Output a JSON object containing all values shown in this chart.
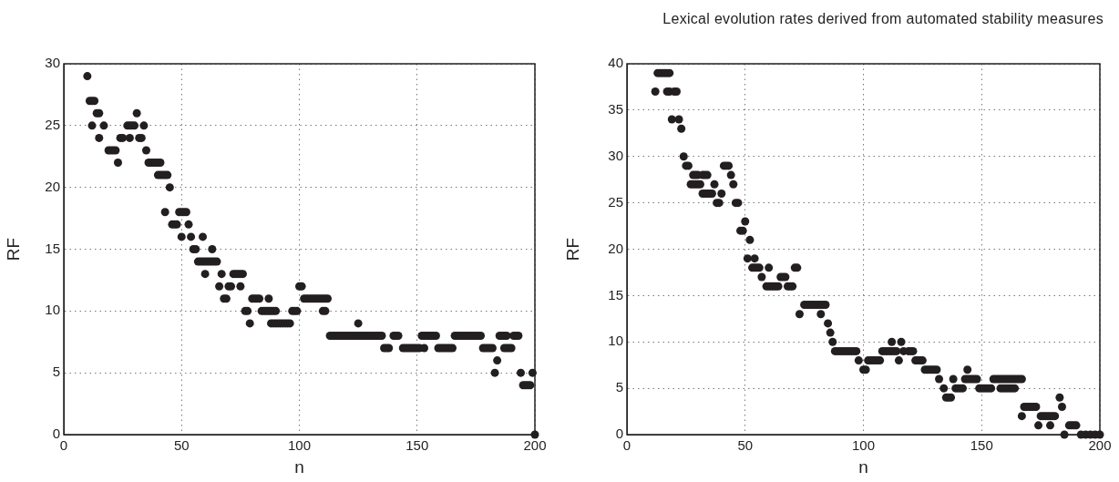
{
  "chart_data": [
    {
      "type": "scatter",
      "xlabel": "n",
      "ylabel": "RF",
      "xlim": [
        0,
        200
      ],
      "ylim": [
        0,
        30
      ],
      "xticks": [
        0,
        50,
        100,
        150,
        200
      ],
      "yticks": [
        0,
        5,
        10,
        15,
        20,
        25,
        30
      ],
      "grid": true,
      "marker": "circle",
      "series": [
        {
          "color": "#231f20",
          "x": [
            10,
            11,
            12,
            13,
            14,
            15,
            12,
            17,
            27,
            28,
            29,
            30,
            34,
            15,
            24,
            25,
            28,
            32,
            33,
            31,
            19,
            20,
            21,
            22,
            35,
            23,
            36,
            37,
            38,
            39,
            40,
            41,
            40,
            41,
            42,
            43,
            44,
            45,
            43,
            49,
            50,
            51,
            52,
            46,
            47,
            48,
            53,
            50,
            54,
            59,
            55,
            56,
            63,
            57,
            58,
            59,
            60,
            61,
            62,
            63,
            64,
            65,
            60,
            67,
            72,
            73,
            74,
            75,
            76,
            66,
            70,
            71,
            75,
            100,
            101,
            68,
            69,
            80,
            81,
            82,
            83,
            87,
            102,
            103,
            104,
            105,
            106,
            107,
            108,
            109,
            110,
            111,
            112,
            77,
            78,
            84,
            85,
            86,
            87,
            88,
            89,
            90,
            97,
            98,
            99,
            110,
            111,
            79,
            88,
            89,
            90,
            91,
            92,
            93,
            94,
            95,
            96,
            125,
            113,
            114,
            115,
            116,
            117,
            118,
            119,
            120,
            121,
            122,
            123,
            124,
            125,
            126,
            127,
            128,
            129,
            130,
            131,
            132,
            133,
            134,
            135,
            140,
            141,
            142,
            152,
            153,
            154,
            155,
            156,
            157,
            158,
            166,
            167,
            168,
            169,
            170,
            171,
            172,
            173,
            174,
            175,
            176,
            177,
            185,
            186,
            187,
            188,
            191,
            192,
            193,
            136,
            137,
            138,
            144,
            145,
            146,
            147,
            148,
            149,
            150,
            151,
            153,
            159,
            160,
            161,
            162,
            163,
            164,
            165,
            178,
            179,
            180,
            181,
            182,
            187,
            188,
            189,
            190,
            184,
            183,
            194,
            199,
            195,
            196,
            197,
            198,
            200
          ],
          "values": [
            29,
            27,
            27,
            27,
            26,
            26,
            25,
            25,
            25,
            25,
            25,
            25,
            25,
            24,
            24,
            24,
            24,
            24,
            24,
            26,
            23,
            23,
            23,
            23,
            23,
            22,
            22,
            22,
            22,
            22,
            22,
            22,
            21,
            21,
            21,
            21,
            21,
            20,
            18,
            18,
            18,
            18,
            18,
            17,
            17,
            17,
            17,
            16,
            16,
            16,
            15,
            15,
            15,
            14,
            14,
            14,
            14,
            14,
            14,
            14,
            14,
            14,
            13,
            13,
            13,
            13,
            13,
            13,
            13,
            12,
            12,
            12,
            12,
            12,
            12,
            11,
            11,
            11,
            11,
            11,
            11,
            11,
            11,
            11,
            11,
            11,
            11,
            11,
            11,
            11,
            11,
            11,
            11,
            10,
            10,
            10,
            10,
            10,
            10,
            10,
            10,
            10,
            10,
            10,
            10,
            10,
            10,
            9,
            9,
            9,
            9,
            9,
            9,
            9,
            9,
            9,
            9,
            9,
            8,
            8,
            8,
            8,
            8,
            8,
            8,
            8,
            8,
            8,
            8,
            8,
            8,
            8,
            8,
            8,
            8,
            8,
            8,
            8,
            8,
            8,
            8,
            8,
            8,
            8,
            8,
            8,
            8,
            8,
            8,
            8,
            8,
            8,
            8,
            8,
            8,
            8,
            8,
            8,
            8,
            8,
            8,
            8,
            8,
            8,
            8,
            8,
            8,
            8,
            8,
            8,
            7,
            7,
            7,
            7,
            7,
            7,
            7,
            7,
            7,
            7,
            7,
            7,
            7,
            7,
            7,
            7,
            7,
            7,
            7,
            7,
            7,
            7,
            7,
            7,
            7,
            7,
            7,
            7,
            6,
            5,
            5,
            5,
            4,
            4,
            4,
            4,
            0
          ]
        }
      ]
    },
    {
      "type": "scatter",
      "title": "Lexical evolution rates derived from automated stability measures",
      "xlabel": "n",
      "ylabel": "RF",
      "xlim": [
        0,
        200
      ],
      "ylim": [
        0,
        40
      ],
      "xticks": [
        0,
        50,
        100,
        150,
        200
      ],
      "yticks": [
        0,
        5,
        10,
        15,
        20,
        25,
        30,
        35,
        40
      ],
      "grid": true,
      "marker": "circle",
      "series": [
        {
          "color": "#231f20",
          "x": [
            13,
            14,
            15,
            16,
            17,
            18,
            12,
            17,
            18,
            20,
            21,
            19,
            22,
            23,
            24,
            25,
            26,
            41,
            42,
            43,
            28,
            29,
            30,
            32,
            33,
            34,
            44,
            27,
            28,
            29,
            30,
            31,
            37,
            45,
            32,
            33,
            34,
            35,
            36,
            40,
            38,
            39,
            46,
            47,
            50,
            48,
            49,
            52,
            51,
            54,
            53,
            54,
            55,
            56,
            60,
            71,
            72,
            57,
            65,
            66,
            67,
            59,
            60,
            61,
            62,
            63,
            64,
            68,
            69,
            70,
            75,
            76,
            77,
            78,
            79,
            80,
            81,
            82,
            83,
            84,
            73,
            82,
            85,
            86,
            87,
            112,
            116,
            88,
            89,
            90,
            91,
            92,
            93,
            94,
            95,
            96,
            97,
            108,
            109,
            110,
            111,
            112,
            113,
            114,
            117,
            119,
            120,
            121,
            98,
            102,
            103,
            104,
            105,
            106,
            107,
            115,
            122,
            123,
            124,
            125,
            100,
            101,
            126,
            127,
            128,
            129,
            130,
            131,
            144,
            132,
            138,
            143,
            144,
            145,
            146,
            147,
            148,
            155,
            156,
            157,
            158,
            159,
            160,
            161,
            162,
            163,
            164,
            165,
            166,
            167,
            134,
            139,
            140,
            141,
            142,
            149,
            150,
            151,
            152,
            153,
            154,
            158,
            159,
            160,
            161,
            162,
            163,
            164,
            135,
            136,
            137,
            183,
            168,
            169,
            170,
            171,
            172,
            173,
            184,
            167,
            175,
            176,
            177,
            178,
            179,
            180,
            181,
            174,
            179,
            187,
            188,
            189,
            190,
            185,
            192,
            194,
            196,
            198,
            200
          ],
          "values": [
            39,
            39,
            39,
            39,
            39,
            39,
            37,
            37,
            37,
            37,
            37,
            34,
            34,
            33,
            30,
            29,
            29,
            29,
            29,
            29,
            28,
            28,
            28,
            28,
            28,
            28,
            28,
            27,
            27,
            27,
            27,
            27,
            27,
            27,
            26,
            26,
            26,
            26,
            26,
            26,
            25,
            25,
            25,
            25,
            23,
            22,
            22,
            21,
            19,
            19,
            18,
            18,
            18,
            18,
            18,
            18,
            18,
            17,
            17,
            17,
            17,
            16,
            16,
            16,
            16,
            16,
            16,
            16,
            16,
            16,
            14,
            14,
            14,
            14,
            14,
            14,
            14,
            14,
            14,
            14,
            13,
            13,
            12,
            11,
            10,
            10,
            10,
            9,
            9,
            9,
            9,
            9,
            9,
            9,
            9,
            9,
            9,
            9,
            9,
            9,
            9,
            9,
            9,
            9,
            9,
            9,
            9,
            9,
            8,
            8,
            8,
            8,
            8,
            8,
            8,
            8,
            8,
            8,
            8,
            8,
            7,
            7,
            7,
            7,
            7,
            7,
            7,
            7,
            7,
            6,
            6,
            6,
            6,
            6,
            6,
            6,
            6,
            6,
            6,
            6,
            6,
            6,
            6,
            6,
            6,
            6,
            6,
            6,
            6,
            6,
            5,
            5,
            5,
            5,
            5,
            5,
            5,
            5,
            5,
            5,
            5,
            5,
            5,
            5,
            5,
            5,
            5,
            5,
            4,
            4,
            4,
            4,
            3,
            3,
            3,
            3,
            3,
            3,
            3,
            2,
            2,
            2,
            2,
            2,
            2,
            2,
            2,
            1,
            1,
            1,
            1,
            1,
            1,
            0,
            0,
            0,
            0,
            0,
            0
          ]
        }
      ]
    }
  ]
}
